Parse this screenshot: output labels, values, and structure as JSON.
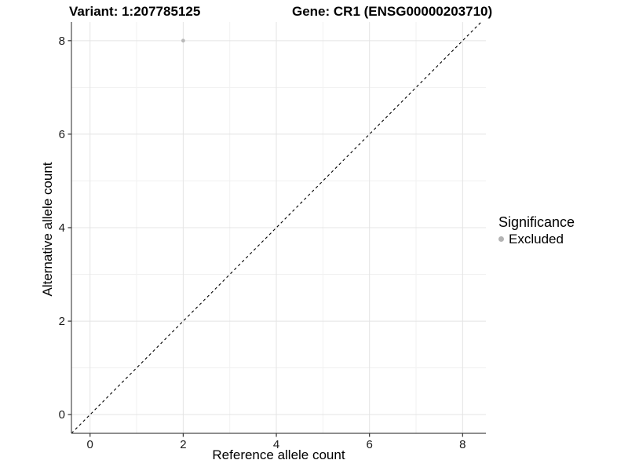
{
  "chart_data": {
    "type": "scatter",
    "titles": {
      "variant": "Variant: 1:207785125",
      "gene": "Gene: CR1 (ENSG00000203710)"
    },
    "xlabel": "Reference allele count",
    "ylabel": "Alternative allele count",
    "xlim": [
      -0.4,
      8.5
    ],
    "ylim": [
      -0.4,
      8.4
    ],
    "xticks": [
      0,
      2,
      4,
      6,
      8
    ],
    "yticks": [
      0,
      2,
      4,
      6,
      8
    ],
    "xticks_minor": [
      1,
      3,
      5,
      7
    ],
    "yticks_minor": [
      1,
      3,
      5,
      7
    ],
    "grid": "major and minor gridlines on, white panel background",
    "points": [
      {
        "x": 2,
        "y": 8,
        "significance": "Excluded"
      }
    ],
    "reference_line": {
      "type": "identity",
      "style": "dashed",
      "color": "#000000"
    },
    "legend": {
      "title": "Significance",
      "position": "right",
      "items": [
        {
          "label": "Excluded",
          "color": "#b3b3b3"
        }
      ]
    },
    "colors": {
      "point": "#b9b9b9",
      "grid_major": "#e4e4e4",
      "grid_minor": "#f1f1f1",
      "axis": "#4a4a4a",
      "tick": "#333333",
      "text": "#1a1a1a",
      "background": "#ffffff"
    }
  }
}
